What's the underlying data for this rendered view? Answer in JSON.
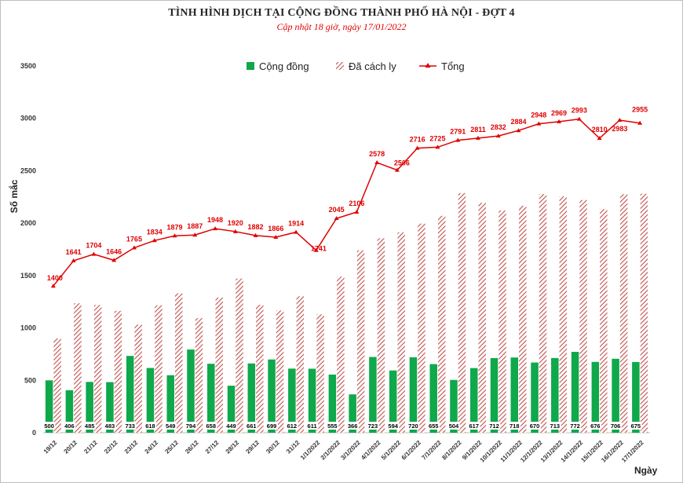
{
  "header": {
    "title": "TÌNH HÌNH DỊCH TẠI CỘNG ĐỒNG THÀNH PHỐ HÀ NỘI - ĐỢT 4",
    "subtitle": "Cập nhật 18 giờ, ngày 17/01/2022"
  },
  "colors": {
    "community": "#0fa84b",
    "isolated_stripe": "#c0504d",
    "total": "#e00000"
  },
  "chart_data": {
    "type": "bar",
    "categories": [
      "19/12",
      "20/12",
      "21/12",
      "22/12",
      "23/12",
      "24/12",
      "25/12",
      "26/12",
      "27/12",
      "28/12",
      "29/12",
      "30/12",
      "31/12",
      "1/1/2022",
      "2/1/2022",
      "3/1/2022",
      "4/1/2022",
      "5/1/2022",
      "6/1/2022",
      "7/1/2022",
      "8/1/2022",
      "9/1/2022",
      "10/1/2022",
      "11/1/2022",
      "12/1/2022",
      "13/1/2022",
      "14/1/2022",
      "15/1/2022",
      "16/1/2022",
      "17/1/2022"
    ],
    "series": [
      {
        "name": "Cộng đồng",
        "kind": "bar",
        "values": [
          500,
          406,
          485,
          483,
          733,
          618,
          549,
          794,
          658,
          449,
          661,
          699,
          612,
          611,
          555,
          366,
          723,
          594,
          720,
          655,
          504,
          617,
          712,
          718,
          670,
          713,
          772,
          676,
          706,
          675
        ]
      },
      {
        "name": "Đã cách ly",
        "kind": "bar-hatched",
        "values": [
          900,
          1235,
          1219,
          1163,
          1032,
          1216,
          1330,
          1093,
          1290,
          1471,
          1221,
          1167,
          1302,
          1130,
          1490,
          1740,
          1855,
          1912,
          1996,
          2070,
          2287,
          2194,
          2120,
          2166,
          2278,
          2256,
          2221,
          2134,
          2277,
          2280
        ]
      },
      {
        "name": "Tổng",
        "kind": "line",
        "values": [
          1400,
          1641,
          1704,
          1646,
          1765,
          1834,
          1879,
          1887,
          1948,
          1920,
          1882,
          1866,
          1914,
          1741,
          2045,
          2106,
          2578,
          2506,
          2716,
          2725,
          2791,
          2811,
          2832,
          2884,
          2948,
          2969,
          2993,
          2810,
          2983,
          2955
        ]
      }
    ],
    "ylabel": "Số mắc",
    "xlabel": "Ngày",
    "ylim": [
      0,
      3500
    ],
    "yticks": [
      0,
      500,
      1000,
      1500,
      2000,
      2500,
      3000,
      3500
    ],
    "grid": false,
    "legend_position": "top-center"
  }
}
